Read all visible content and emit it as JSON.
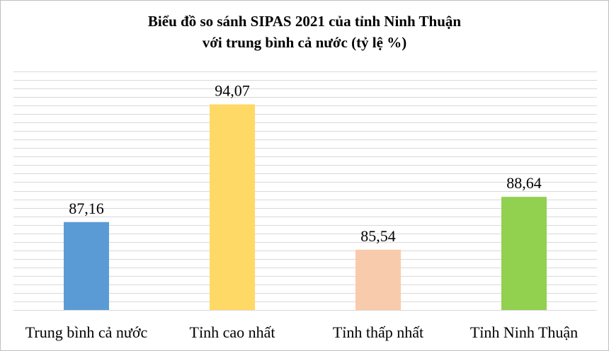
{
  "chart_data": {
    "type": "bar",
    "title": "Biểu đồ so sánh SIPAS 2021 của tỉnh Ninh Thuận",
    "subtitle": "với trung bình cả nước (tỷ lệ %)",
    "categories": [
      "Trung bình cả nước",
      "Tỉnh cao nhất",
      "Tỉnh thấp nhất",
      "Tỉnh Ninh Thuận"
    ],
    "values": [
      87.16,
      94.07,
      85.54,
      88.64
    ],
    "value_labels": [
      "87,16",
      "94,07",
      "85,54",
      "88,64"
    ],
    "bar_colors": [
      "#5b9bd5",
      "#ffd966",
      "#f8cbad",
      "#92d050"
    ],
    "gridline_color": "#d9d9d9",
    "ylim": [
      82,
      96
    ],
    "grid": true,
    "legend": "none"
  }
}
